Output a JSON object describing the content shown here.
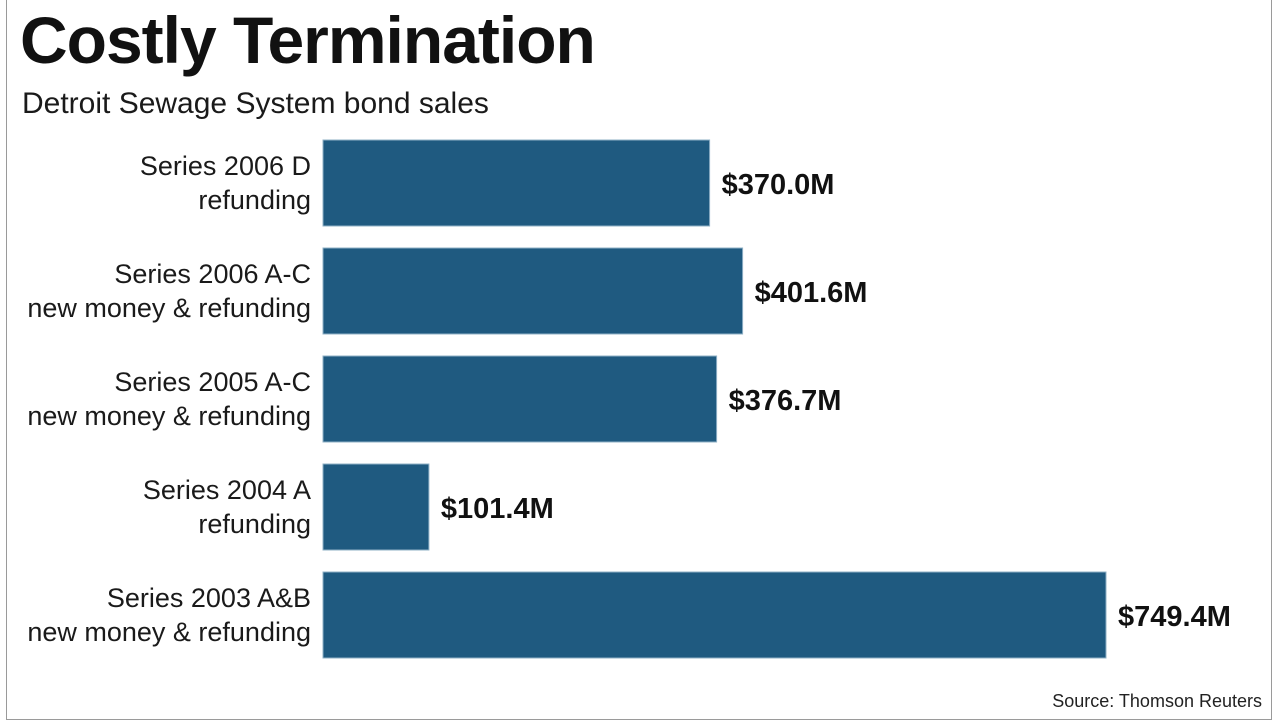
{
  "chart_data": {
    "type": "bar",
    "orientation": "horizontal",
    "title": "Costly Termination",
    "subtitle": "Detroit Sewage System bond sales",
    "source": "Source: Thomson Reuters",
    "categories": [
      [
        "Series 2006 D",
        "refunding"
      ],
      [
        "Series 2006 A-C",
        "new money & refunding"
      ],
      [
        "Series 2005 A-C",
        "new money & refunding"
      ],
      [
        "Series 2004 A",
        "refunding"
      ],
      [
        "Series 2003 A&B",
        "new money & refunding"
      ]
    ],
    "values": [
      370.0,
      401.6,
      376.7,
      101.4,
      749.4
    ],
    "value_labels": [
      "$370.0M",
      "$401.6M",
      "$376.7M",
      "$101.4M",
      "$749.4M"
    ],
    "unit": "$M",
    "xlim": [
      0,
      749.4
    ],
    "grid": false,
    "legend": "none",
    "bar_color": "#1f5a80"
  }
}
